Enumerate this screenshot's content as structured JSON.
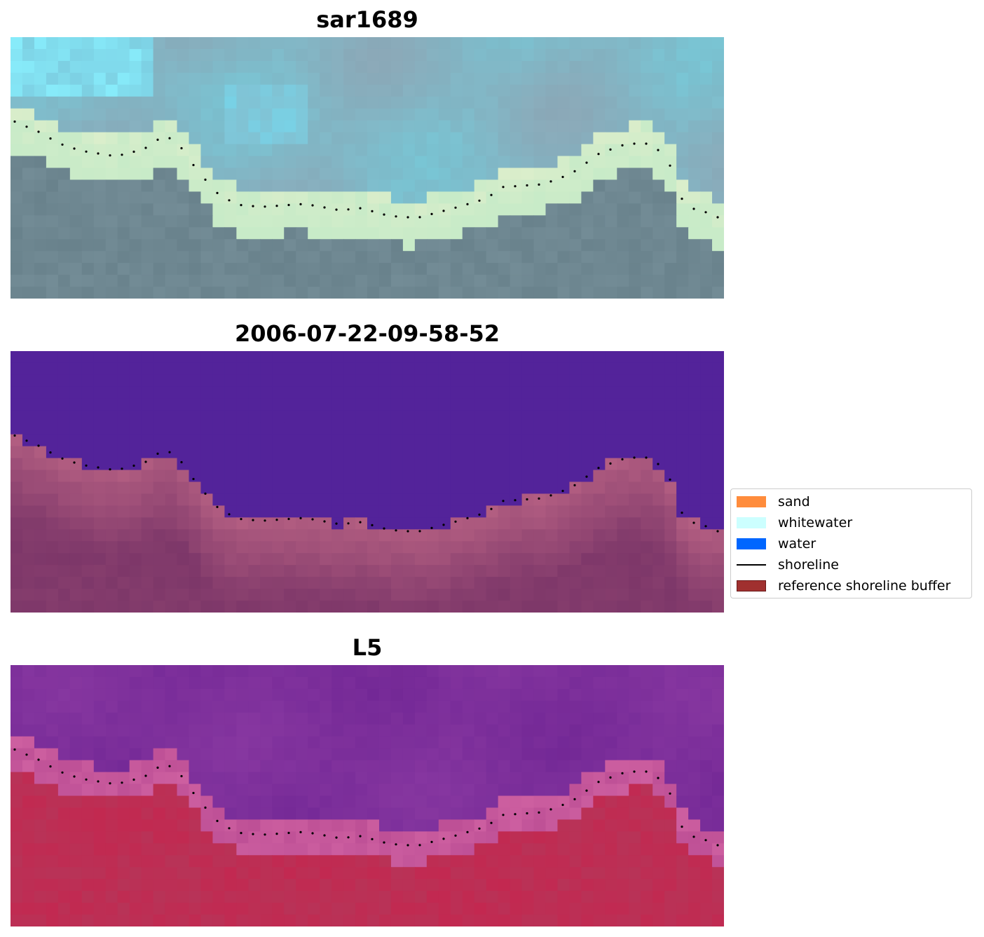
{
  "panels": [
    {
      "title": "sar1689",
      "style": "rgb"
    },
    {
      "title": "2006-07-22-09-58-52",
      "style": "classified"
    },
    {
      "title": "L5",
      "style": "index"
    }
  ],
  "legend": {
    "items": [
      {
        "label": "sand",
        "color": "#ff8c3c",
        "kind": "patch"
      },
      {
        "label": "whitewater",
        "color": "#ccffff",
        "kind": "patch"
      },
      {
        "label": "water",
        "color": "#0066ff",
        "kind": "patch"
      },
      {
        "label": "shoreline",
        "color": "#000000",
        "kind": "line"
      },
      {
        "label": "reference shoreline buffer",
        "color": "#a0302f",
        "kind": "patch"
      }
    ]
  },
  "colors": {
    "classified_water_region": "#53239a",
    "shoreline_dots": "#000000"
  }
}
